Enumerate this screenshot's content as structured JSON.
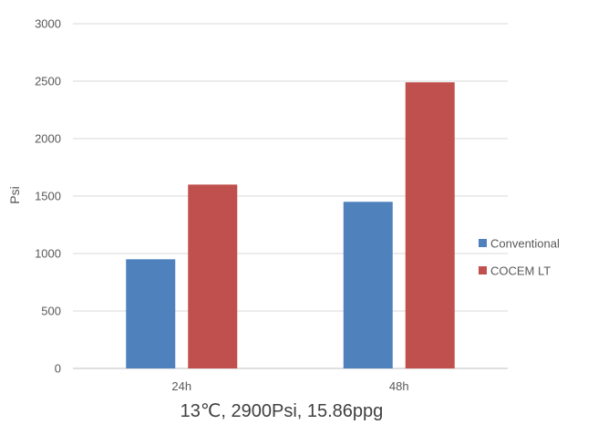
{
  "chart_data": {
    "type": "bar",
    "title": "",
    "xlabel": "13℃, 2900Psi, 15.86ppg",
    "ylabel": "Psi",
    "categories": [
      "24h",
      "48h"
    ],
    "series": [
      {
        "name": "Conventional",
        "values": [
          950,
          1450
        ],
        "color": "#4F81BD"
      },
      {
        "name": "COCEM LT",
        "values": [
          1600,
          2490
        ],
        "color": "#C0504D"
      }
    ],
    "ylim": [
      0,
      3000
    ],
    "yticks": [
      0,
      500,
      1000,
      1500,
      2000,
      2500,
      3000
    ],
    "grid": true,
    "legend_position": "right"
  }
}
